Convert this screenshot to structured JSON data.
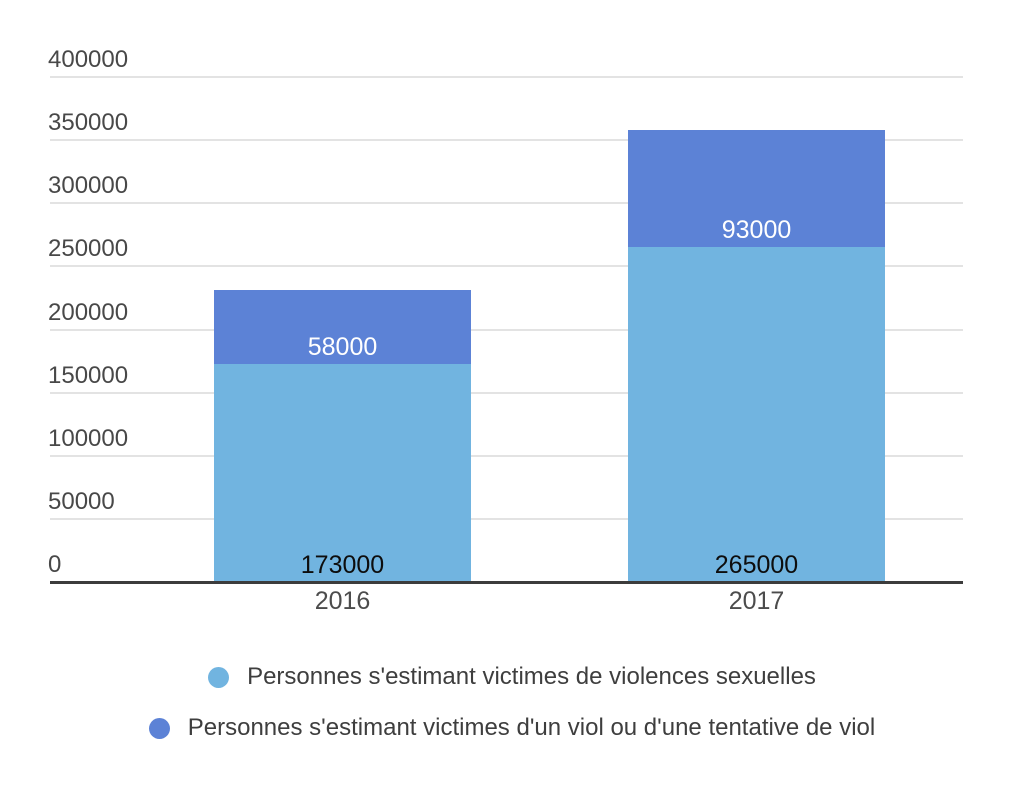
{
  "chart_data": {
    "type": "bar",
    "stacked": true,
    "title": "",
    "xlabel": "",
    "ylabel": "",
    "categories": [
      "2016",
      "2017"
    ],
    "series": [
      {
        "name": "Personnes s'estimant victimes de violences sexuelles",
        "values": [
          173000,
          265000
        ],
        "value_labels": [
          "173000",
          "265000"
        ],
        "color": "#71B4E0",
        "label_color": "#0D0D0D"
      },
      {
        "name": "Personnes s'estimant victimes d'un viol ou d'une tentative de viol",
        "values": [
          58000,
          93000
        ],
        "value_labels": [
          "58000",
          "93000"
        ],
        "color": "#5C82D6",
        "label_color": "#FFFFFF"
      }
    ],
    "stack_totals": [
      231000,
      358000
    ],
    "ylim": [
      0,
      400000
    ],
    "yticks": [
      0,
      50000,
      100000,
      150000,
      200000,
      250000,
      300000,
      350000,
      400000
    ],
    "ytick_labels": [
      "0",
      "50000",
      "100000",
      "150000",
      "200000",
      "250000",
      "300000",
      "350000",
      "400000"
    ],
    "grid": true,
    "legend_position": "bottom",
    "value_label_position": "inside-bottom"
  },
  "legend": {
    "items": [
      {
        "label": "Personnes s'estimant victimes de violences sexuelles",
        "color": "#71B4E0"
      },
      {
        "label": "Personnes s'estimant victimes d'un viol ou d'une tentative de viol",
        "color": "#5C82D6"
      }
    ]
  },
  "colors": {
    "background": "#FFFFFF",
    "gridline": "#E3E3E3",
    "axis_line": "#3C3C3C",
    "ytick_text": "#484848",
    "xtick_text": "#4C4C4C",
    "legend_text": "#3E3E3E"
  }
}
